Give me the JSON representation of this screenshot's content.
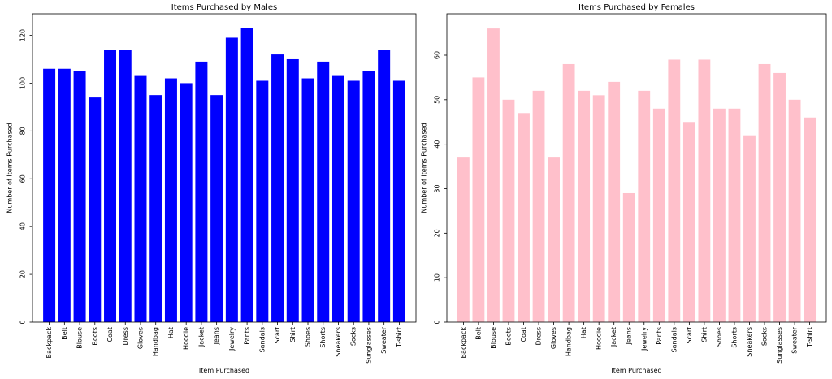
{
  "chart_data": [
    {
      "type": "bar",
      "title": "Items Purchased by Males",
      "xlabel": "Item Purchased",
      "ylabel": "Number of Items Purchased",
      "color": "#0000ff",
      "ylim": [
        0,
        129
      ],
      "yticks": [
        0,
        20,
        40,
        60,
        80,
        100,
        120
      ],
      "grid": false,
      "categories": [
        "Backpack",
        "Belt",
        "Blouse",
        "Boots",
        "Coat",
        "Dress",
        "Gloves",
        "Handbag",
        "Hat",
        "Hoodie",
        "Jacket",
        "Jeans",
        "Jewelry",
        "Pants",
        "Sandals",
        "Scarf",
        "Shirt",
        "Shoes",
        "Shorts",
        "Sneakers",
        "Socks",
        "Sunglasses",
        "Sweater",
        "T-shirt"
      ],
      "values": [
        106,
        106,
        105,
        94,
        114,
        114,
        103,
        95,
        102,
        100,
        109,
        95,
        119,
        123,
        101,
        112,
        110,
        102,
        109,
        103,
        101,
        105,
        114,
        101
      ]
    },
    {
      "type": "bar",
      "title": "Items Purchased by Females",
      "xlabel": "Item Purchased",
      "ylabel": "Number of Items Purchased",
      "color": "#ffc0cb",
      "ylim": [
        0,
        69.3
      ],
      "yticks": [
        0,
        10,
        20,
        30,
        40,
        50,
        60
      ],
      "grid": false,
      "categories": [
        "Backpack",
        "Belt",
        "Blouse",
        "Boots",
        "Coat",
        "Dress",
        "Gloves",
        "Handbag",
        "Hat",
        "Hoodie",
        "Jacket",
        "Jeans",
        "Jewelry",
        "Pants",
        "Sandals",
        "Scarf",
        "Shirt",
        "Shoes",
        "Shorts",
        "Sneakers",
        "Socks",
        "Sunglasses",
        "Sweater",
        "T-shirt"
      ],
      "values": [
        37,
        55,
        66,
        50,
        47,
        52,
        37,
        58,
        52,
        51,
        54,
        29,
        52,
        48,
        59,
        45,
        59,
        48,
        48,
        42,
        58,
        56,
        50,
        46
      ]
    }
  ]
}
